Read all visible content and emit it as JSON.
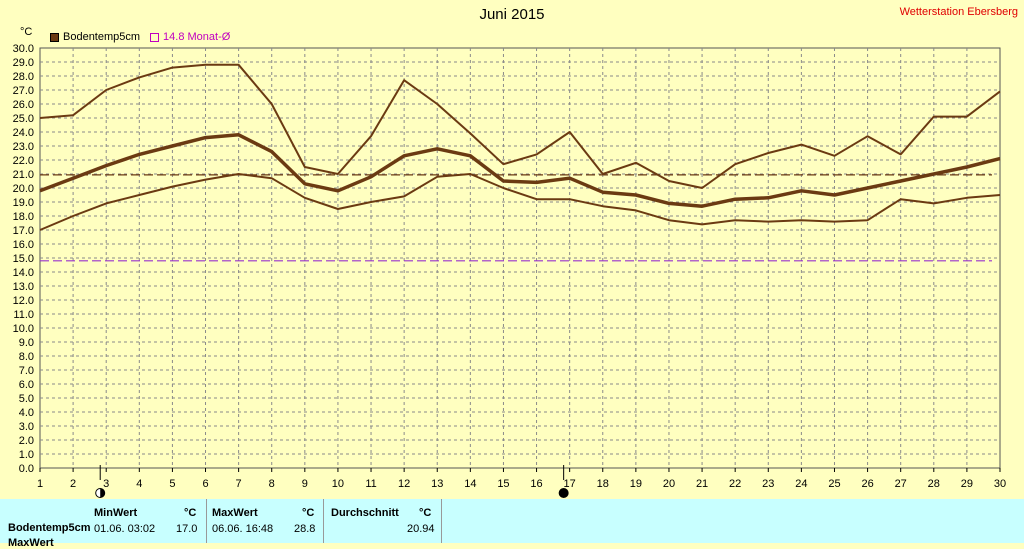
{
  "title": "Juni 2015",
  "station": "Wetterstation Ebersberg",
  "unit": "°C",
  "legend": {
    "series1": "Bodentemp5cm",
    "series2": "14.8 Monat-Ø"
  },
  "colors": {
    "background": "#ffffc0",
    "series": "#6b3a12",
    "avg_line": "#6b3a12",
    "month_avg": "#9933cc",
    "station": "#e00000",
    "table_bg": "#c8ffff"
  },
  "chart_data": {
    "type": "line",
    "x": [
      1,
      2,
      3,
      4,
      5,
      6,
      7,
      8,
      9,
      10,
      11,
      12,
      13,
      14,
      15,
      16,
      17,
      18,
      19,
      20,
      21,
      22,
      23,
      24,
      25,
      26,
      27,
      28,
      29,
      30
    ],
    "ylim": [
      0,
      30
    ],
    "ytick_step": 1,
    "grid": true,
    "series": [
      {
        "role": "max",
        "values": [
          25.0,
          25.2,
          27.0,
          27.9,
          28.6,
          28.8,
          28.8,
          26.0,
          21.5,
          21.0,
          23.7,
          27.7,
          26.0,
          23.9,
          21.7,
          22.4,
          24.0,
          21.0,
          21.8,
          20.5,
          20.0,
          21.7,
          22.5,
          23.1,
          22.3,
          23.7,
          22.4,
          25.1,
          25.1,
          26.9
        ]
      },
      {
        "name": "Bodentemp5cm",
        "role": "mean",
        "values": [
          19.8,
          20.7,
          21.6,
          22.4,
          23.0,
          23.6,
          23.8,
          22.6,
          20.3,
          19.8,
          20.8,
          22.3,
          22.8,
          22.3,
          20.5,
          20.4,
          20.7,
          19.7,
          19.5,
          18.9,
          18.7,
          19.2,
          19.3,
          19.8,
          19.5,
          20.0,
          20.5,
          21.0,
          21.5,
          22.1
        ]
      },
      {
        "role": "min",
        "values": [
          17.0,
          18.0,
          18.9,
          19.5,
          20.1,
          20.6,
          21.0,
          20.7,
          19.3,
          18.5,
          19.0,
          19.4,
          20.8,
          21.0,
          20.0,
          19.2,
          19.2,
          18.7,
          18.4,
          17.7,
          17.4,
          17.7,
          17.6,
          17.7,
          17.6,
          17.7,
          19.2,
          18.9,
          19.3,
          19.5
        ]
      }
    ],
    "reference_lines": [
      {
        "role": "durchschnitt",
        "value": 20.94
      },
      {
        "name": "14.8 Monat-Ø",
        "value": 14.8
      }
    ],
    "moon_markers": [
      {
        "day": 3,
        "symbol": "first-quarter"
      },
      {
        "day": 17,
        "symbol": "new-moon"
      }
    ]
  },
  "table": {
    "row1_label": "Bodentemp5cm",
    "row2_label": "MaxWert",
    "min_header": "MinWert",
    "min_unit": "°C",
    "min_date": "01.06.  03:02",
    "min_value": "17.0",
    "max_header": "MaxWert",
    "max_unit": "°C",
    "max_date": "06.06.  16:48",
    "max_value": "28.8",
    "avg_header": "Durchschnitt",
    "avg_unit": "°C",
    "avg_value": "20.94"
  }
}
